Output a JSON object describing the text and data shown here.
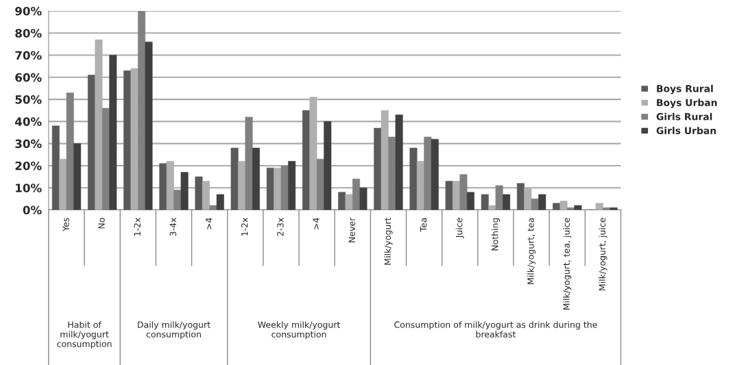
{
  "chart_data": {
    "type": "bar",
    "categories": [
      "Yes",
      "No",
      "1-2x",
      "3-4x",
      ">4",
      "1-2x",
      "2-3x",
      ">4",
      "Never",
      "Milk/yogurt",
      "Tea",
      "Juice",
      "Nothing",
      "Milk/yogurt, tea",
      "Milk/yogurt, tea, juice",
      "Milk/yogurt, juice"
    ],
    "series": [
      {
        "name": "Boys Rural",
        "color": "#5a5a5a",
        "values": [
          38,
          61,
          63,
          21,
          15,
          28,
          19,
          45,
          8,
          37,
          28,
          13,
          7,
          12,
          3,
          0
        ]
      },
      {
        "name": "Boys Urban",
        "color": "#b0b0b0",
        "values": [
          23,
          77,
          64,
          22,
          13,
          22,
          19,
          51,
          7,
          45,
          22,
          13,
          2,
          10,
          4,
          3
        ]
      },
      {
        "name": "Girls Rural",
        "color": "#808080",
        "values": [
          53,
          46,
          90,
          9,
          2,
          42,
          20,
          23,
          14,
          33,
          33,
          16,
          11,
          5,
          1,
          1
        ]
      },
      {
        "name": "Girls Urban",
        "color": "#404040",
        "values": [
          30,
          70,
          76,
          17,
          7,
          28,
          22,
          40,
          10,
          43,
          32,
          8,
          7,
          7,
          2,
          1
        ]
      }
    ],
    "annotations": [
      "Habit of milk/yogurt consumption",
      "Daily milk/yogurt consumption",
      "Weekly milk/yogurt consumption",
      "Consumption of milk/yogurt as drink during the breakfast"
    ],
    "ylim": [
      0,
      90
    ],
    "yticks": [
      {
        "value": 0,
        "label": "0%"
      },
      {
        "value": 10,
        "label": "10%"
      },
      {
        "value": 20,
        "label": "20%"
      },
      {
        "value": 30,
        "label": "30%"
      },
      {
        "value": 40,
        "label": "40%"
      },
      {
        "value": 50,
        "label": "50%"
      },
      {
        "value": 60,
        "label": "60%"
      },
      {
        "value": 70,
        "label": "70%"
      },
      {
        "value": 80,
        "label": "80%"
      },
      {
        "value": 90,
        "label": "90%"
      }
    ],
    "grid": "y",
    "legend": "right"
  }
}
